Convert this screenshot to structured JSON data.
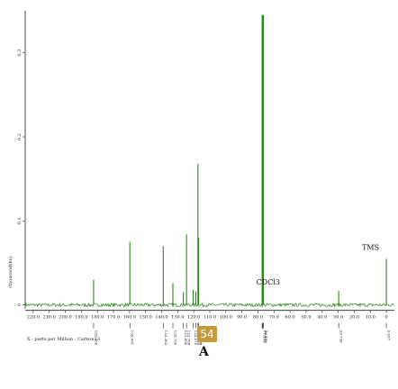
{
  "chart_data": {
    "type": "line",
    "title": "",
    "ylabel": "(thousandths)",
    "xlabel": "X : parts per Million : Carbon13",
    "xlim": [
      225,
      -5
    ],
    "ylim": [
      -0.01,
      0.35
    ],
    "x_ticks": [
      220,
      210,
      200,
      190,
      180,
      170,
      160,
      150,
      140,
      130,
      120,
      110,
      100,
      90,
      80,
      70,
      60,
      50,
      40,
      30,
      20,
      10,
      0
    ],
    "x_tick_labels": [
      "220.0",
      "210.0",
      "200.0",
      "190.0",
      "180.0",
      "170.0",
      "160.0",
      "150.0",
      "140.0",
      "130.0",
      "120.0",
      "110.0",
      "100.0",
      "90.0",
      "80.0",
      "70.0",
      "60.0",
      "50.0",
      "40.0",
      "30.0",
      "20.0",
      "10.0",
      "0"
    ],
    "y_ticks": [
      0,
      0.1,
      0.2,
      0.3
    ],
    "y_tick_labels": [
      "0",
      "0.1",
      "0.2",
      "0.3"
    ],
    "line_color": "#2a8a1a",
    "peaks": [
      {
        "x": 182.4,
        "y": 0.03,
        "label": "182.436"
      },
      {
        "x": 159.8,
        "y": 0.075,
        "label": "159.691"
      },
      {
        "x": 139.0,
        "y": 0.07,
        "label": "133.362"
      },
      {
        "x": 133.0,
        "y": 0.026,
        "label": "128.736"
      },
      {
        "x": 126.5,
        "y": 0.015,
        "label": "121.996"
      },
      {
        "x": 124.5,
        "y": 0.084,
        "label": "123.708"
      },
      {
        "x": 120.4,
        "y": 0.018,
        "label": "122.070"
      },
      {
        "x": 118.7,
        "y": 0.016,
        "label": "117.660"
      },
      {
        "x": 117.4,
        "y": 0.168,
        "label": "116.937"
      },
      {
        "x": 117.0,
        "y": 0.08,
        "label": "116.000"
      },
      {
        "x": 77.4,
        "y": 0.345,
        "label": "77.310"
      },
      {
        "x": 77.0,
        "y": 0.345,
        "label": "77.110"
      },
      {
        "x": 76.6,
        "y": 0.345,
        "label": "76.828"
      },
      {
        "x": 29.7,
        "y": 0.017,
        "label": "29.738"
      },
      {
        "x": 0.0,
        "y": 0.055,
        "label": "0.037"
      }
    ],
    "annotations": [
      {
        "text": "CDCl3",
        "x": 77.0
      },
      {
        "text": "TMS",
        "x": 0.0
      }
    ]
  },
  "badge": "54",
  "caption_letter": "A"
}
